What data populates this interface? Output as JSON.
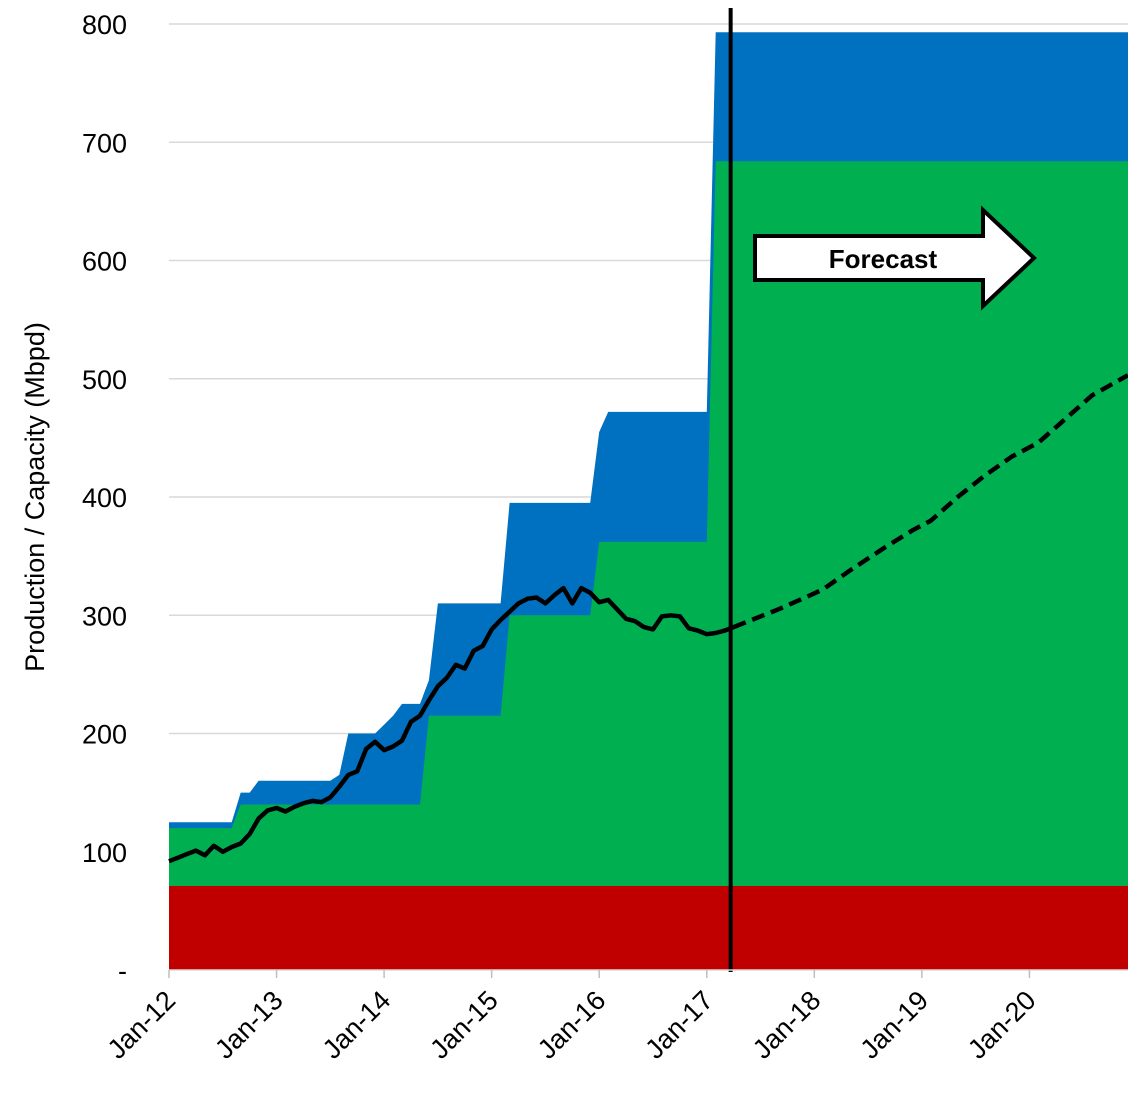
{
  "chart_data": {
    "type": "area",
    "ylabel": "Production / Capacity (Mbpd)",
    "ylim": [
      0,
      800
    ],
    "yticks": [
      {
        "value": 0,
        "label": "-"
      },
      {
        "value": 100,
        "label": "100"
      },
      {
        "value": 200,
        "label": "200"
      },
      {
        "value": 300,
        "label": "300"
      },
      {
        "value": 400,
        "label": "400"
      },
      {
        "value": 500,
        "label": "500"
      },
      {
        "value": 600,
        "label": "600"
      },
      {
        "value": 700,
        "label": "700"
      },
      {
        "value": 800,
        "label": "800"
      }
    ],
    "xticks": [
      "Jan-12",
      "Jan-13",
      "Jan-14",
      "Jan-15",
      "Jan-16",
      "Jan-17",
      "Jan-18",
      "Jan-19",
      "Jan-20"
    ],
    "xrange": [
      "2012-01",
      "2020-11"
    ],
    "grid": true,
    "legend": "none",
    "colors": {
      "red": "#C00000",
      "green": "#00B050",
      "blue": "#0070C0",
      "line": "#000000",
      "grid": "#D9D9D9"
    },
    "forecast_date": "2017-04",
    "forecast_label": "Forecast",
    "areas": [
      {
        "color": "#0070C0",
        "points": [
          [
            "2012-01",
            125
          ],
          [
            "2012-08",
            125
          ],
          [
            "2012-09",
            150
          ],
          [
            "2012-10",
            150
          ],
          [
            "2012-11",
            160
          ],
          [
            "2013-07",
            160
          ],
          [
            "2013-08",
            165
          ],
          [
            "2013-09",
            200
          ],
          [
            "2013-12",
            200
          ],
          [
            "2014-02",
            215
          ],
          [
            "2014-03",
            225
          ],
          [
            "2014-05",
            225
          ],
          [
            "2014-06",
            245
          ],
          [
            "2014-07",
            310
          ],
          [
            "2015-01",
            310
          ],
          [
            "2015-02",
            310
          ],
          [
            "2015-03",
            395
          ],
          [
            "2015-12",
            395
          ],
          [
            "2016-01",
            455
          ],
          [
            "2016-02",
            472
          ],
          [
            "2017-01",
            472
          ],
          [
            "2017-02",
            793
          ],
          [
            "2020-11",
            793
          ]
        ]
      },
      {
        "color": "#00B050",
        "points": [
          [
            "2012-01",
            120
          ],
          [
            "2012-08",
            120
          ],
          [
            "2012-09",
            140
          ],
          [
            "2013-12",
            140
          ],
          [
            "2014-05",
            140
          ],
          [
            "2014-06",
            215
          ],
          [
            "2015-01",
            215
          ],
          [
            "2015-02",
            215
          ],
          [
            "2015-03",
            300
          ],
          [
            "2015-12",
            300
          ],
          [
            "2016-01",
            362
          ],
          [
            "2017-01",
            362
          ],
          [
            "2017-02",
            684
          ],
          [
            "2020-11",
            684
          ]
        ]
      },
      {
        "color": "#C00000",
        "points": [
          [
            "2012-01",
            71
          ],
          [
            "2020-11",
            71
          ]
        ]
      }
    ],
    "series": [
      {
        "style": "solid",
        "points": [
          [
            "2012-01",
            92
          ],
          [
            "2012-02",
            95
          ],
          [
            "2012-03",
            98
          ],
          [
            "2012-04",
            101
          ],
          [
            "2012-05",
            97
          ],
          [
            "2012-06",
            105
          ],
          [
            "2012-07",
            100
          ],
          [
            "2012-08",
            104
          ],
          [
            "2012-09",
            107
          ],
          [
            "2012-10",
            115
          ],
          [
            "2012-11",
            128
          ],
          [
            "2012-12",
            135
          ],
          [
            "2013-01",
            137
          ],
          [
            "2013-02",
            134
          ],
          [
            "2013-03",
            138
          ],
          [
            "2013-04",
            141
          ],
          [
            "2013-05",
            143
          ],
          [
            "2013-06",
            142
          ],
          [
            "2013-07",
            146
          ],
          [
            "2013-08",
            155
          ],
          [
            "2013-09",
            165
          ],
          [
            "2013-10",
            168
          ],
          [
            "2013-11",
            187
          ],
          [
            "2013-12",
            193
          ],
          [
            "2014-01",
            186
          ],
          [
            "2014-02",
            189
          ],
          [
            "2014-03",
            194
          ],
          [
            "2014-04",
            210
          ],
          [
            "2014-05",
            215
          ],
          [
            "2014-06",
            228
          ],
          [
            "2014-07",
            240
          ],
          [
            "2014-08",
            247
          ],
          [
            "2014-09",
            258
          ],
          [
            "2014-10",
            255
          ],
          [
            "2014-11",
            270
          ],
          [
            "2014-12",
            274
          ],
          [
            "2015-01",
            288
          ],
          [
            "2015-02",
            296
          ],
          [
            "2015-03",
            303
          ],
          [
            "2015-04",
            310
          ],
          [
            "2015-05",
            314
          ],
          [
            "2015-06",
            315
          ],
          [
            "2015-07",
            310
          ],
          [
            "2015-08",
            317
          ],
          [
            "2015-09",
            323
          ],
          [
            "2015-10",
            310
          ],
          [
            "2015-11",
            323
          ],
          [
            "2015-12",
            319
          ],
          [
            "2016-01",
            311
          ],
          [
            "2016-02",
            313
          ],
          [
            "2016-03",
            305
          ],
          [
            "2016-04",
            297
          ],
          [
            "2016-05",
            295
          ],
          [
            "2016-06",
            290
          ],
          [
            "2016-07",
            288
          ],
          [
            "2016-08",
            299
          ],
          [
            "2016-09",
            300
          ],
          [
            "2016-10",
            299
          ],
          [
            "2016-11",
            289
          ],
          [
            "2016-12",
            287
          ],
          [
            "2017-01",
            284
          ],
          [
            "2017-02",
            285
          ],
          [
            "2017-03",
            287
          ],
          [
            "2017-04",
            290
          ]
        ]
      },
      {
        "style": "dashed",
        "points": [
          [
            "2017-04",
            290
          ],
          [
            "2017-06",
            296
          ],
          [
            "2017-09",
            305
          ],
          [
            "2017-12",
            315
          ],
          [
            "2018-02",
            322
          ],
          [
            "2018-05",
            338
          ],
          [
            "2018-09",
            358
          ],
          [
            "2018-12",
            372
          ],
          [
            "2019-02",
            380
          ],
          [
            "2019-05",
            400
          ],
          [
            "2019-08",
            418
          ],
          [
            "2019-11",
            434
          ],
          [
            "2020-02",
            446
          ],
          [
            "2020-05",
            466
          ],
          [
            "2020-08",
            486
          ],
          [
            "2020-11",
            503
          ]
        ]
      }
    ]
  }
}
